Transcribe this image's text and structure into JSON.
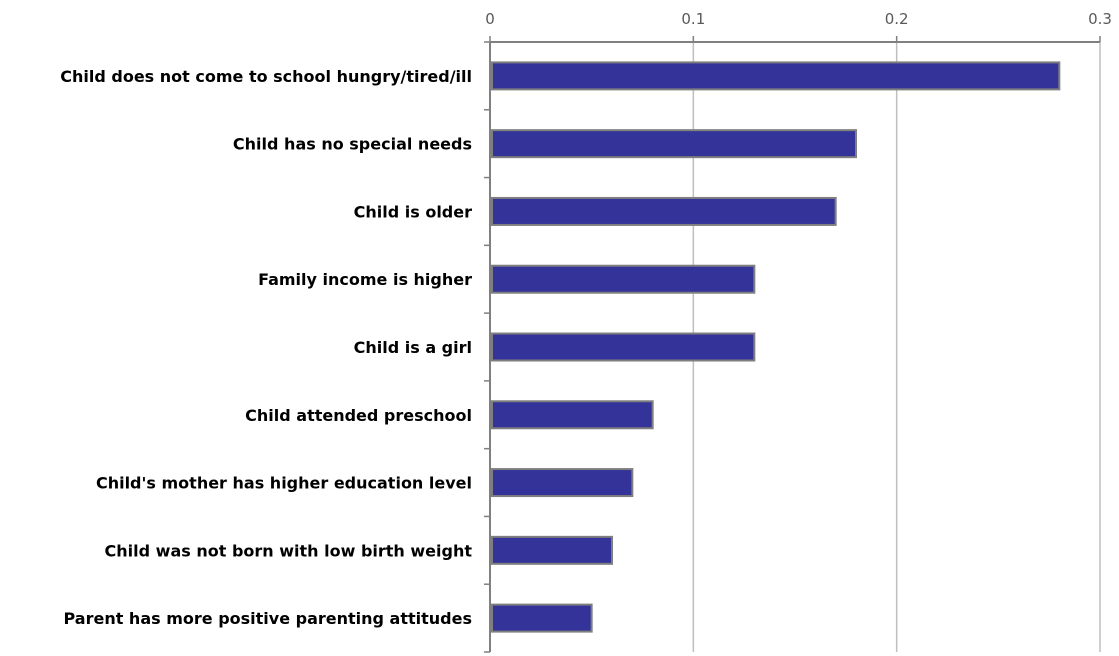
{
  "chart_data": {
    "type": "bar",
    "orientation": "horizontal",
    "categories": [
      "Child does not come to school hungry/tired/ill",
      "Child has no special needs",
      "Child is older",
      "Family income is higher",
      "Child is a girl",
      "Child attended preschool",
      "Child's mother has higher education level",
      "Child was not born with low birth weight",
      "Parent has more positive parenting attitudes"
    ],
    "values": [
      0.28,
      0.18,
      0.17,
      0.13,
      0.13,
      0.08,
      0.07,
      0.06,
      0.05
    ],
    "xlim": [
      0,
      0.3
    ],
    "xticks": [
      "0",
      "0.1",
      "0.2",
      "0.3"
    ],
    "grid": true,
    "legend": "none",
    "colors": {
      "bar": "#333399",
      "bar_border": "#7f7f7f",
      "grid": "#bfbfbf",
      "axis": "#808080"
    }
  }
}
